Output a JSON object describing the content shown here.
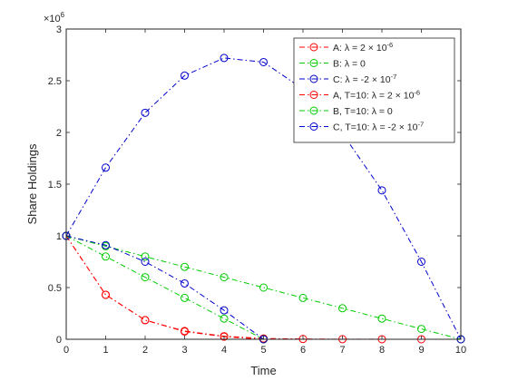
{
  "chart_data": {
    "type": "line",
    "title": "",
    "xlabel": "Time",
    "ylabel": "Share Holdings",
    "xlim": [
      0,
      10
    ],
    "ylim": [
      0,
      3000000
    ],
    "x_ticks": [
      0,
      1,
      2,
      3,
      4,
      5,
      6,
      7,
      8,
      9,
      10
    ],
    "y_ticks": [
      0,
      500000,
      1000000,
      1500000,
      2000000,
      2500000,
      3000000
    ],
    "y_tick_labels": [
      "0",
      "0.5",
      "1",
      "1.5",
      "2",
      "2.5",
      "3"
    ],
    "y_exponent_base": "×10",
    "y_exponent_power": "6",
    "grid": false,
    "legend_location": "top-right",
    "series": [
      {
        "name": "A: λ = 2 × 10",
        "name_sup": "-6",
        "color": "#ff0000",
        "x": [
          0,
          1,
          2,
          3,
          4,
          5,
          6,
          7,
          8,
          9,
          10
        ],
        "values": [
          1000000,
          430000,
          185000,
          80000,
          30000,
          8000,
          3000,
          1000,
          500,
          200,
          0
        ]
      },
      {
        "name": "B: λ = 0",
        "name_sup": "",
        "color": "#00cc00",
        "x": [
          0,
          1,
          2,
          3,
          4,
          5,
          6,
          7,
          8,
          9,
          10
        ],
        "values": [
          1000000,
          900000,
          800000,
          700000,
          600000,
          500000,
          400000,
          300000,
          200000,
          100000,
          0
        ]
      },
      {
        "name": "C: λ = -2 × 10",
        "name_sup": "-7",
        "color": "#0000cc",
        "x": [
          0,
          1,
          2,
          3,
          4,
          5,
          6,
          7,
          8,
          9,
          10
        ],
        "values": [
          1000000,
          1660000,
          2190000,
          2550000,
          2720000,
          2680000,
          2420000,
          1990000,
          1440000,
          750000,
          0
        ]
      },
      {
        "name": "A, T=10: λ = 2 × 10",
        "name_sup": "-6",
        "color": "#ff0000",
        "x": [
          0,
          1,
          2,
          3,
          4,
          5
        ],
        "values": [
          1000000,
          430000,
          185000,
          75000,
          25000,
          0
        ]
      },
      {
        "name": "B, T=10: λ = 0",
        "name_sup": "",
        "color": "#00cc00",
        "x": [
          0,
          1,
          2,
          3,
          4,
          5
        ],
        "values": [
          1000000,
          800000,
          600000,
          400000,
          200000,
          0
        ]
      },
      {
        "name": "C, T=10: λ = -2 × 10",
        "name_sup": "-7",
        "color": "#0000cc",
        "x": [
          0,
          1,
          2,
          3,
          4,
          5
        ],
        "values": [
          1000000,
          910000,
          750000,
          540000,
          280000,
          0
        ]
      }
    ]
  }
}
